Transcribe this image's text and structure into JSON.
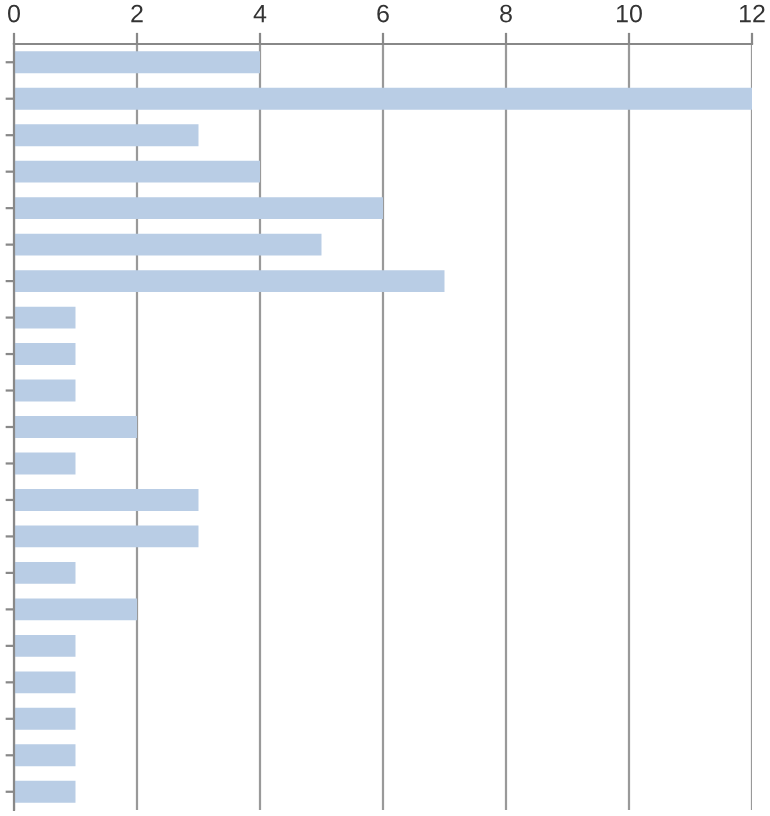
{
  "chart_data": {
    "type": "bar",
    "orientation": "horizontal",
    "categories": [
      null,
      null,
      null,
      null,
      null,
      null,
      null,
      null,
      null,
      null,
      null,
      null,
      null,
      null,
      null,
      null,
      null,
      null,
      null,
      null,
      null
    ],
    "values": [
      4,
      12,
      3,
      4,
      6,
      5,
      7,
      1,
      1,
      1,
      2,
      1,
      3,
      3,
      1,
      2,
      1,
      1,
      1,
      1,
      1
    ],
    "color": "#b9cde5",
    "xlim": [
      0,
      12
    ],
    "xticks": [
      0,
      2,
      4,
      6,
      8,
      10,
      12
    ],
    "grid": "x"
  }
}
